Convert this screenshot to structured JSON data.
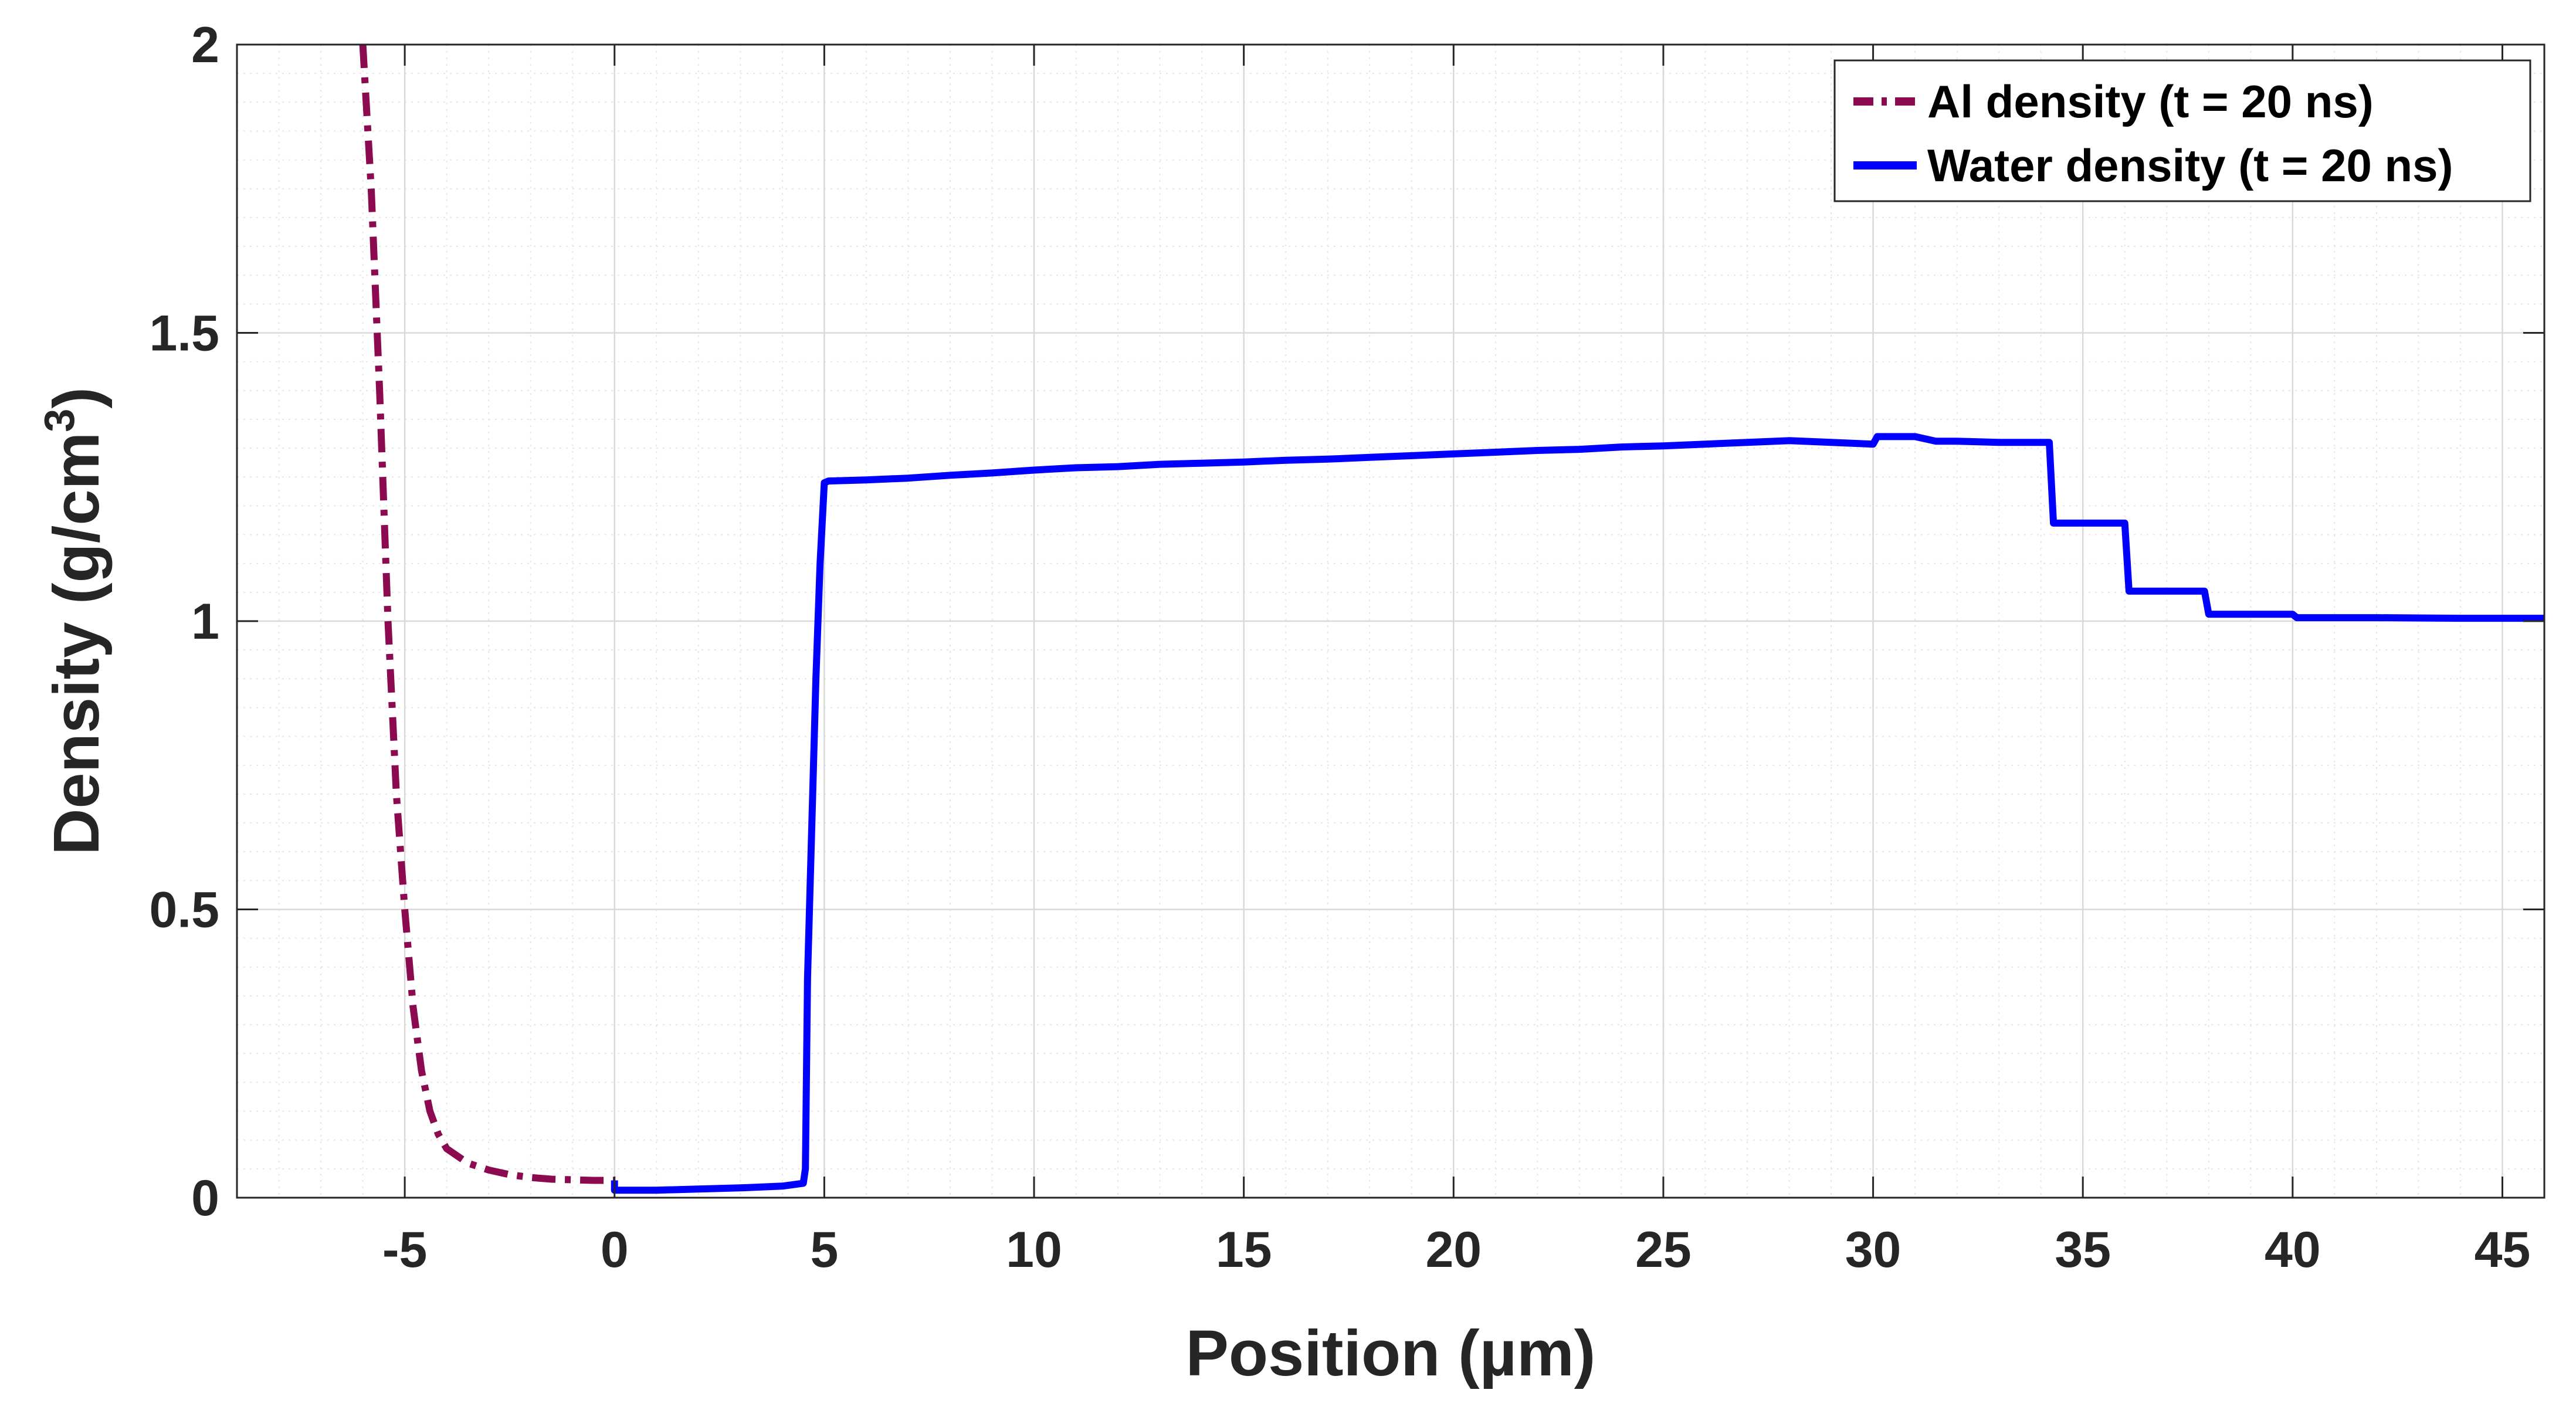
{
  "chart_data": {
    "type": "line",
    "title": "",
    "xlabel": "Position (µm)",
    "ylabel": "Density (g/cm",
    "ylabel_superscript": "3",
    "ylabel_suffix": ")",
    "xlim": [
      -9,
      46
    ],
    "ylim": [
      0,
      2
    ],
    "xticks": [
      -5,
      0,
      5,
      10,
      15,
      20,
      25,
      30,
      35,
      40,
      45
    ],
    "yticks": [
      0,
      0.5,
      1,
      1.5,
      2
    ],
    "xtick_labels": [
      "-5",
      "0",
      "5",
      "10",
      "15",
      "20",
      "25",
      "30",
      "35",
      "40",
      "45"
    ],
    "ytick_labels": [
      "0",
      "0.5",
      "1",
      "1.5",
      "2"
    ],
    "grid": true,
    "minor_grid": true,
    "legend": "top-right",
    "series": [
      {
        "name": "Al density (t = 20 ns)",
        "color": "#8b0a50",
        "dash": "dash-dot",
        "x": [
          -6.0,
          -5.8,
          -5.6,
          -5.4,
          -5.2,
          -5.0,
          -4.8,
          -4.6,
          -4.4,
          -4.2,
          -4.0,
          -3.5,
          -3.0,
          -2.5,
          -2.0,
          -1.5,
          -1.0,
          -0.5,
          0.0
        ],
        "y": [
          2.0,
          1.75,
          1.4,
          1.0,
          0.7,
          0.5,
          0.33,
          0.22,
          0.15,
          0.11,
          0.085,
          0.06,
          0.048,
          0.04,
          0.035,
          0.032,
          0.031,
          0.03,
          0.03
        ]
      },
      {
        "name": "Water density (t = 20 ns)",
        "color": "#0000ff",
        "dash": "solid",
        "x": [
          0.0,
          0.0,
          1.0,
          2.0,
          3.0,
          4.0,
          4.5,
          4.55,
          4.6,
          4.8,
          4.9,
          5.0,
          5.1,
          6.0,
          7.0,
          8.0,
          9.0,
          10.0,
          11.0,
          12.0,
          13.0,
          14.0,
          15.0,
          16.0,
          17.0,
          18.0,
          19.0,
          20.0,
          21.0,
          22.0,
          23.0,
          24.0,
          25.0,
          26.0,
          27.0,
          28.0,
          29.0,
          30.0,
          30.1,
          31.0,
          31.5,
          32.0,
          33.0,
          34.2,
          34.3,
          35.5,
          36.0,
          36.1,
          37.5,
          37.9,
          38.0,
          40.0,
          40.1,
          42.0,
          44.0,
          46.0
        ],
        "y": [
          0.03,
          0.013,
          0.013,
          0.015,
          0.017,
          0.02,
          0.025,
          0.05,
          0.38,
          0.9,
          1.1,
          1.24,
          1.243,
          1.245,
          1.248,
          1.253,
          1.257,
          1.262,
          1.266,
          1.268,
          1.272,
          1.274,
          1.276,
          1.279,
          1.281,
          1.284,
          1.287,
          1.29,
          1.293,
          1.296,
          1.298,
          1.302,
          1.304,
          1.307,
          1.31,
          1.313,
          1.31,
          1.307,
          1.32,
          1.32,
          1.312,
          1.312,
          1.31,
          1.31,
          1.17,
          1.17,
          1.17,
          1.052,
          1.052,
          1.052,
          1.012,
          1.012,
          1.006,
          1.006,
          1.005,
          1.005
        ]
      }
    ]
  }
}
